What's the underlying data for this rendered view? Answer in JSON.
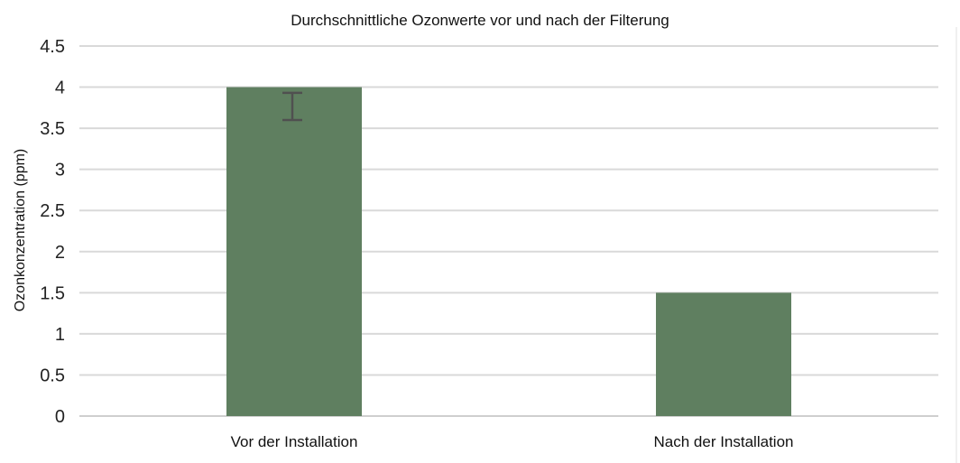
{
  "chart_data": {
    "type": "bar",
    "title": "Durchschnittliche Ozonwerte vor und nach der Filterung",
    "xlabel": "",
    "ylabel": "Ozonkonzentration (ppm)",
    "categories": [
      "Vor der Installation",
      "Nach der Installation"
    ],
    "values": [
      4.0,
      1.5
    ],
    "error_bars": [
      {
        "category": "Vor der Installation",
        "low": 3.6,
        "high": 3.93
      }
    ],
    "ylim": [
      0,
      4.5
    ],
    "yticks": [
      "0",
      "0.5",
      "1",
      "1.5",
      "2",
      "2.5",
      "3",
      "3.5",
      "4",
      "4.5"
    ],
    "grid": true,
    "bar_color": "#5f7f60"
  }
}
